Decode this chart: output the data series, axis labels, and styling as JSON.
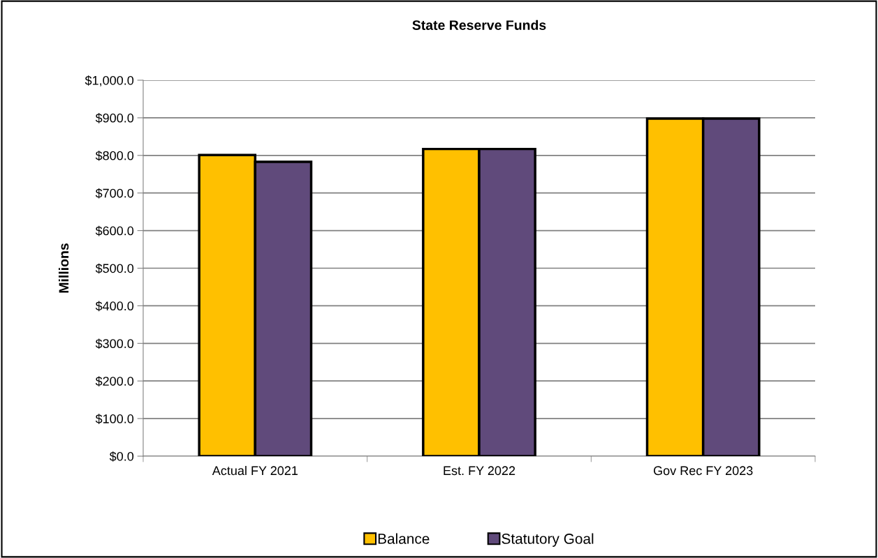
{
  "chart_data": {
    "type": "bar",
    "title": "State Reserve Funds",
    "ylabel": "Millions",
    "categories": [
      "Actual FY 2021",
      "Est. FY 2022",
      "Gov Rec FY 2023"
    ],
    "series": [
      {
        "name": "Balance",
        "color": "#ffc000",
        "values": [
          801,
          817,
          898
        ]
      },
      {
        "name": "Statutory Goal",
        "color": "#604a7b",
        "values": [
          783,
          817,
          898
        ]
      }
    ],
    "ylim": [
      0,
      1000
    ],
    "yticks": [
      {
        "value": 0,
        "label": "$0.0"
      },
      {
        "value": 100,
        "label": "$100.0"
      },
      {
        "value": 200,
        "label": "$200.0"
      },
      {
        "value": 300,
        "label": "$300.0"
      },
      {
        "value": 400,
        "label": "$400.0"
      },
      {
        "value": 500,
        "label": "$500.0"
      },
      {
        "value": 600,
        "label": "$600.0"
      },
      {
        "value": 700,
        "label": "$700.0"
      },
      {
        "value": 800,
        "label": "$800.0"
      },
      {
        "value": 900,
        "label": "$900.0"
      },
      {
        "value": 1000,
        "label": "$1,000.0"
      }
    ],
    "grid": "y",
    "legend": "bottom"
  }
}
